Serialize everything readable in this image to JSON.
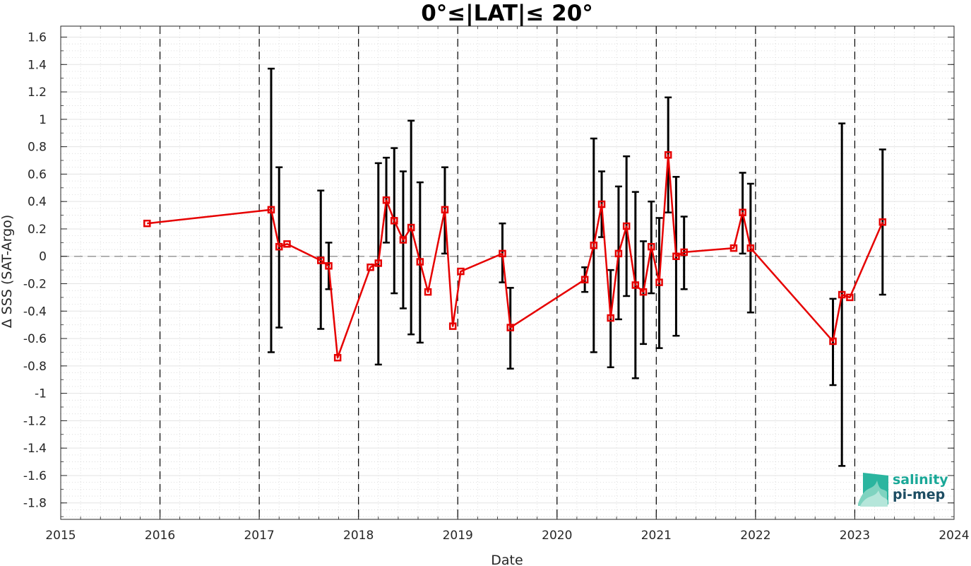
{
  "chart_data": {
    "type": "line",
    "title": "0°≤|LAT|≤ 20°",
    "xlabel": "Date",
    "ylabel": "Δ SSS (SAT-Argo)",
    "xlim": [
      2015,
      2024
    ],
    "ylim": [
      -1.92,
      1.68
    ],
    "x_ticks": [
      "2015",
      "2016",
      "2017",
      "2018",
      "2019",
      "2020",
      "2021",
      "2022",
      "2023",
      "2024"
    ],
    "y_ticks": [
      "-1.8",
      "-1.6",
      "-1.4",
      "-1.2",
      "-1",
      "-0.8",
      "-0.6",
      "-0.4",
      "-0.2",
      "0",
      "0.2",
      "0.4",
      "0.6",
      "0.8",
      "1",
      "1.2",
      "1.4",
      "1.6"
    ],
    "grid": true,
    "year_dividers": [
      2016,
      2017,
      2018,
      2019,
      2020,
      2021,
      2022,
      2023
    ],
    "zero_line": 0,
    "colors": {
      "series": "#e60000",
      "error_bars": "#000000",
      "zero_line": "#999999",
      "dividers": "#000000"
    },
    "series": [
      {
        "x": [
          2015.87,
          2017.12,
          2017.2,
          2017.28,
          2017.62,
          2017.7,
          2017.79,
          2018.12,
          2018.2,
          2018.28,
          2018.36,
          2018.45,
          2018.53,
          2018.62,
          2018.7,
          2018.87,
          2018.95,
          2019.03,
          2019.45,
          2019.53,
          2020.28,
          2020.37,
          2020.45,
          2020.54,
          2020.62,
          2020.7,
          2020.79,
          2020.87,
          2020.95,
          2021.03,
          2021.12,
          2021.2,
          2021.28,
          2021.78,
          2021.87,
          2021.95,
          2022.78,
          2022.87,
          2022.95,
          2023.28
        ],
        "values": [
          0.24,
          0.34,
          0.07,
          0.09,
          -0.03,
          -0.07,
          -0.74,
          -0.08,
          -0.05,
          0.41,
          0.26,
          0.12,
          0.21,
          -0.04,
          -0.26,
          0.34,
          -0.51,
          -0.11,
          0.02,
          -0.52,
          -0.17,
          0.08,
          0.38,
          -0.45,
          0.02,
          0.22,
          -0.21,
          -0.26,
          0.07,
          -0.19,
          0.74,
          0.0,
          0.03,
          0.06,
          0.32,
          0.06,
          -0.62,
          -0.28,
          -0.3,
          0.25
        ],
        "err_high": [
          null,
          1.37,
          0.65,
          null,
          0.48,
          0.1,
          null,
          null,
          0.68,
          0.72,
          0.79,
          0.62,
          0.99,
          0.54,
          null,
          0.65,
          null,
          null,
          0.24,
          -0.23,
          -0.08,
          0.86,
          0.62,
          -0.1,
          0.51,
          0.73,
          0.47,
          0.11,
          0.4,
          0.28,
          1.16,
          0.58,
          0.29,
          null,
          0.61,
          0.53,
          -0.31,
          0.97,
          null,
          0.78
        ],
        "err_low": [
          null,
          -0.7,
          -0.52,
          null,
          -0.53,
          -0.24,
          null,
          null,
          -0.79,
          0.1,
          -0.27,
          -0.38,
          -0.57,
          -0.63,
          null,
          0.02,
          null,
          null,
          -0.19,
          -0.82,
          -0.26,
          -0.7,
          0.14,
          -0.81,
          -0.46,
          -0.29,
          -0.89,
          -0.64,
          -0.27,
          -0.67,
          0.32,
          -0.58,
          -0.24,
          null,
          0.02,
          -0.41,
          -0.94,
          -1.53,
          null,
          -0.28
        ]
      }
    ]
  },
  "logo": {
    "line1": "salinity",
    "line2": "pi-mep",
    "color1": "#1aa898",
    "color2": "#1d4d63"
  }
}
